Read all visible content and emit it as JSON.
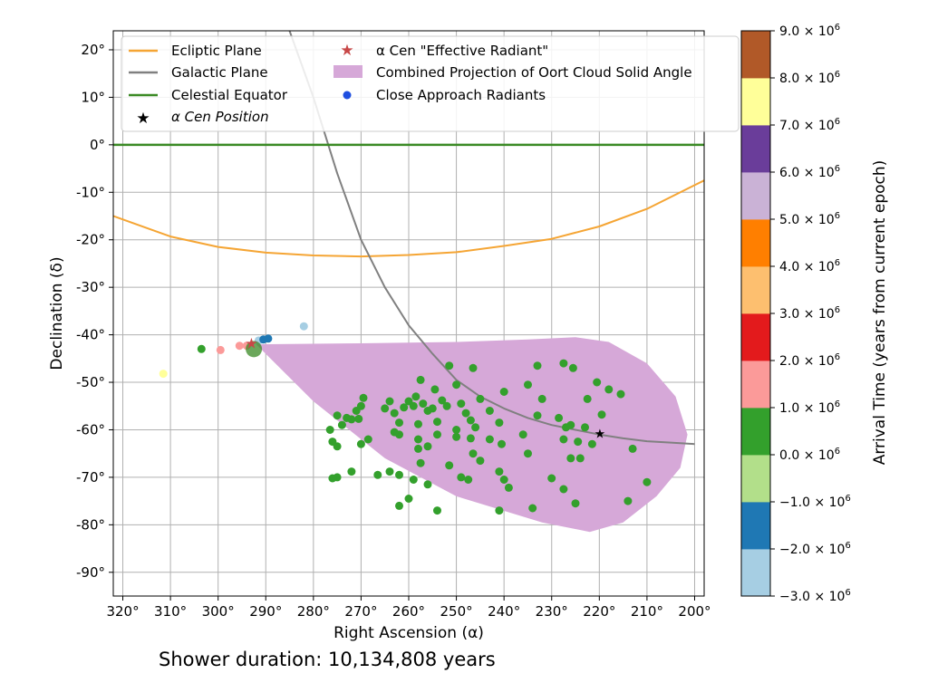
{
  "chart_data": {
    "type": "scatter",
    "xlabel": "Right Ascension (α)",
    "ylabel": "Declination (δ)",
    "caption": "Shower duration: 10,134,808 years",
    "x_axis": {
      "reversed": true,
      "range": [
        322,
        198
      ],
      "ticks": [
        320,
        310,
        300,
        290,
        280,
        270,
        260,
        250,
        240,
        230,
        220,
        210,
        200
      ],
      "tick_labels": [
        "320°",
        "310°",
        "300°",
        "290°",
        "280°",
        "270°",
        "260°",
        "250°",
        "240°",
        "230°",
        "220°",
        "210°",
        "200°"
      ]
    },
    "y_axis": {
      "range": [
        -95,
        24
      ],
      "ticks": [
        20,
        10,
        0,
        -10,
        -20,
        -30,
        -40,
        -50,
        -60,
        -70,
        -80,
        -90
      ],
      "tick_labels": [
        "20°",
        "10°",
        "0°",
        "-10°",
        "-20°",
        "-30°",
        "-40°",
        "-50°",
        "-60°",
        "-70°",
        "-80°",
        "-90°"
      ]
    },
    "grid": true,
    "legend": {
      "placement": "top-left",
      "entries": [
        {
          "label": "Ecliptic Plane",
          "kind": "line",
          "color": "#f5a534"
        },
        {
          "label": "Galactic Plane",
          "kind": "line",
          "color": "#808080"
        },
        {
          "label": "Celestial Equator",
          "kind": "line",
          "color": "#3a8a24"
        },
        {
          "label": "α Cen Position",
          "kind": "star",
          "color": "#000000"
        },
        {
          "label": "α Cen \"Effective Radiant\"",
          "kind": "star",
          "color": "#c84848"
        },
        {
          "label": "Combined Projection of Oort Cloud Solid Angle",
          "kind": "patch",
          "color": "#d6a8d8"
        },
        {
          "label": "Close Approach Radiants",
          "kind": "dot",
          "color": "#1f4fe0"
        }
      ]
    },
    "lines": {
      "celestial_equator": {
        "color": "#3a8a24",
        "dec": 0
      },
      "ecliptic": {
        "color": "#f5a534",
        "points": [
          [
            322,
            -15
          ],
          [
            310,
            -19.3
          ],
          [
            300,
            -21.5
          ],
          [
            290,
            -22.7
          ],
          [
            280,
            -23.3
          ],
          [
            270,
            -23.5
          ],
          [
            260,
            -23.2
          ],
          [
            250,
            -22.6
          ],
          [
            240,
            -21.3
          ],
          [
            230,
            -19.8
          ],
          [
            220,
            -17.2
          ],
          [
            210,
            -13.5
          ],
          [
            200,
            -8.5
          ],
          [
            198,
            -7.5
          ]
        ]
      },
      "galactic": {
        "color": "#808080",
        "points": [
          [
            285,
            24
          ],
          [
            280,
            10
          ],
          [
            275,
            -6
          ],
          [
            270,
            -20
          ],
          [
            265,
            -30
          ],
          [
            260,
            -38
          ],
          [
            255,
            -44
          ],
          [
            250,
            -49.5
          ],
          [
            245,
            -53
          ],
          [
            240,
            -55.5
          ],
          [
            235,
            -57.5
          ],
          [
            230,
            -59
          ],
          [
            225,
            -60
          ],
          [
            220,
            -61
          ],
          [
            215,
            -61.8
          ],
          [
            210,
            -62.4
          ],
          [
            205,
            -62.7
          ],
          [
            200,
            -63
          ]
        ]
      }
    },
    "oort_projection": {
      "color": "#d6a8d8",
      "outline": [
        [
          292,
          -42
        ],
        [
          270,
          -41.8
        ],
        [
          250,
          -41.5
        ],
        [
          235,
          -41
        ],
        [
          225,
          -40.5
        ],
        [
          218,
          -41.5
        ],
        [
          210,
          -46
        ],
        [
          204,
          -53
        ],
        [
          201.5,
          -61
        ],
        [
          203,
          -68
        ],
        [
          208,
          -74
        ],
        [
          215,
          -79.5
        ],
        [
          222,
          -81.5
        ],
        [
          232,
          -79.5
        ],
        [
          250,
          -74
        ],
        [
          265,
          -66
        ],
        [
          280,
          -54
        ],
        [
          292,
          -42
        ]
      ]
    },
    "markers": {
      "alpha_cen_position": {
        "ra": 219.9,
        "dec": -60.8,
        "color": "#000000"
      },
      "alpha_cen_effective_radiant": {
        "ra": 293,
        "dec": -41.7,
        "color": "#c84848"
      },
      "radiant_marker": {
        "ra": 292.5,
        "dec": -43,
        "color": "#3a8a24"
      }
    },
    "colorbar": {
      "label": "Arrival Time (years from current epoch)",
      "bins": [
        {
          "color": "#a6cee3"
        },
        {
          "color": "#1f78b4"
        },
        {
          "color": "#b2df8a"
        },
        {
          "color": "#33a02c"
        },
        {
          "color": "#fb9a99"
        },
        {
          "color": "#e31a1c"
        },
        {
          "color": "#fdbf6f"
        },
        {
          "color": "#ff7f00"
        },
        {
          "color": "#cab2d6"
        },
        {
          "color": "#6a3d9a"
        },
        {
          "color": "#ffff99"
        },
        {
          "color": "#b15928"
        }
      ],
      "tick_mantissas": [
        "−3.0",
        "−2.0",
        "−1.0",
        "0.0",
        "1.0",
        "2.0",
        "3.0",
        "4.0",
        "5.0",
        "6.0",
        "7.0",
        "8.0",
        "9.0"
      ],
      "tick_suffix": "× 10",
      "tick_exponent": "6"
    },
    "scatter_points": [
      {
        "ra": 311.5,
        "dec": -48.2,
        "color": "#ffff99"
      },
      {
        "ra": 303.5,
        "dec": -43,
        "color": "#33a02c"
      },
      {
        "ra": 299.5,
        "dec": -43.2,
        "color": "#fb9a99"
      },
      {
        "ra": 295.5,
        "dec": -42.3,
        "color": "#fb9a99"
      },
      {
        "ra": 294,
        "dec": -42.3,
        "color": "#fb9a99"
      },
      {
        "ra": 291.5,
        "dec": -41.2,
        "color": "#a6cee3"
      },
      {
        "ra": 290.5,
        "dec": -41,
        "color": "#1f78b4"
      },
      {
        "ra": 289.5,
        "dec": -40.8,
        "color": "#1f78b4"
      },
      {
        "ra": 282,
        "dec": -38.2,
        "color": "#a6cee3"
      },
      {
        "ra": 251.5,
        "dec": -46.5,
        "color": "#33a02c"
      },
      {
        "ra": 246.5,
        "dec": -47,
        "color": "#33a02c"
      },
      {
        "ra": 257.5,
        "dec": -49.5,
        "color": "#33a02c"
      },
      {
        "ra": 250,
        "dec": -50.5,
        "color": "#33a02c"
      },
      {
        "ra": 254.5,
        "dec": -51.5,
        "color": "#33a02c"
      },
      {
        "ra": 227.5,
        "dec": -46,
        "color": "#33a02c"
      },
      {
        "ra": 225.5,
        "dec": -47,
        "color": "#33a02c"
      },
      {
        "ra": 233,
        "dec": -46.5,
        "color": "#33a02c"
      },
      {
        "ra": 220.5,
        "dec": -50,
        "color": "#33a02c"
      },
      {
        "ra": 218,
        "dec": -51.5,
        "color": "#33a02c"
      },
      {
        "ra": 215.5,
        "dec": -52.5,
        "color": "#33a02c"
      },
      {
        "ra": 235,
        "dec": -50.5,
        "color": "#33a02c"
      },
      {
        "ra": 240,
        "dec": -52,
        "color": "#33a02c"
      },
      {
        "ra": 232,
        "dec": -53.5,
        "color": "#33a02c"
      },
      {
        "ra": 222.5,
        "dec": -53.5,
        "color": "#33a02c"
      },
      {
        "ra": 269.5,
        "dec": -53.3,
        "color": "#33a02c"
      },
      {
        "ra": 270,
        "dec": -55,
        "color": "#33a02c"
      },
      {
        "ra": 271,
        "dec": -56,
        "color": "#33a02c"
      },
      {
        "ra": 273,
        "dec": -57.5,
        "color": "#33a02c"
      },
      {
        "ra": 275,
        "dec": -57,
        "color": "#33a02c"
      },
      {
        "ra": 274,
        "dec": -59,
        "color": "#33a02c"
      },
      {
        "ra": 276.5,
        "dec": -60,
        "color": "#33a02c"
      },
      {
        "ra": 272,
        "dec": -57.8,
        "color": "#33a02c"
      },
      {
        "ra": 270.5,
        "dec": -57.7,
        "color": "#33a02c"
      },
      {
        "ra": 264,
        "dec": -54,
        "color": "#33a02c"
      },
      {
        "ra": 265,
        "dec": -55.5,
        "color": "#33a02c"
      },
      {
        "ra": 263,
        "dec": -56.5,
        "color": "#33a02c"
      },
      {
        "ra": 261,
        "dec": -55.3,
        "color": "#33a02c"
      },
      {
        "ra": 260,
        "dec": -54,
        "color": "#33a02c"
      },
      {
        "ra": 259,
        "dec": -55,
        "color": "#33a02c"
      },
      {
        "ra": 258.5,
        "dec": -53,
        "color": "#33a02c"
      },
      {
        "ra": 257,
        "dec": -54.5,
        "color": "#33a02c"
      },
      {
        "ra": 256,
        "dec": -56,
        "color": "#33a02c"
      },
      {
        "ra": 255,
        "dec": -55.5,
        "color": "#33a02c"
      },
      {
        "ra": 253,
        "dec": -53.8,
        "color": "#33a02c"
      },
      {
        "ra": 252,
        "dec": -55,
        "color": "#33a02c"
      },
      {
        "ra": 249,
        "dec": -54.5,
        "color": "#33a02c"
      },
      {
        "ra": 248,
        "dec": -56.5,
        "color": "#33a02c"
      },
      {
        "ra": 245,
        "dec": -53.5,
        "color": "#33a02c"
      },
      {
        "ra": 247,
        "dec": -58,
        "color": "#33a02c"
      },
      {
        "ra": 243,
        "dec": -56,
        "color": "#33a02c"
      },
      {
        "ra": 262,
        "dec": -58.5,
        "color": "#33a02c"
      },
      {
        "ra": 258,
        "dec": -58.8,
        "color": "#33a02c"
      },
      {
        "ra": 254,
        "dec": -58.3,
        "color": "#33a02c"
      },
      {
        "ra": 250,
        "dec": -60,
        "color": "#33a02c"
      },
      {
        "ra": 246,
        "dec": -59.5,
        "color": "#33a02c"
      },
      {
        "ra": 241,
        "dec": -58.5,
        "color": "#33a02c"
      },
      {
        "ra": 262,
        "dec": -61,
        "color": "#33a02c"
      },
      {
        "ra": 258,
        "dec": -62,
        "color": "#33a02c"
      },
      {
        "ra": 254,
        "dec": -61,
        "color": "#33a02c"
      },
      {
        "ra": 250,
        "dec": -61.5,
        "color": "#33a02c"
      },
      {
        "ra": 247,
        "dec": -61.8,
        "color": "#33a02c"
      },
      {
        "ra": 243,
        "dec": -62,
        "color": "#33a02c"
      },
      {
        "ra": 263,
        "dec": -60.5,
        "color": "#33a02c"
      },
      {
        "ra": 258,
        "dec": -64,
        "color": "#33a02c"
      },
      {
        "ra": 256,
        "dec": -63.5,
        "color": "#33a02c"
      },
      {
        "ra": 246.5,
        "dec": -65,
        "color": "#33a02c"
      },
      {
        "ra": 245,
        "dec": -66.5,
        "color": "#33a02c"
      },
      {
        "ra": 240.5,
        "dec": -63,
        "color": "#33a02c"
      },
      {
        "ra": 236,
        "dec": -61,
        "color": "#33a02c"
      },
      {
        "ra": 233,
        "dec": -57,
        "color": "#33a02c"
      },
      {
        "ra": 226,
        "dec": -59,
        "color": "#33a02c"
      },
      {
        "ra": 228.5,
        "dec": -57.5,
        "color": "#33a02c"
      },
      {
        "ra": 227,
        "dec": -59.5,
        "color": "#33a02c"
      },
      {
        "ra": 223,
        "dec": -59.5,
        "color": "#33a02c"
      },
      {
        "ra": 219.5,
        "dec": -56.8,
        "color": "#33a02c"
      },
      {
        "ra": 221.5,
        "dec": -63,
        "color": "#33a02c"
      },
      {
        "ra": 224.5,
        "dec": -62.5,
        "color": "#33a02c"
      },
      {
        "ra": 227.5,
        "dec": -62,
        "color": "#33a02c"
      },
      {
        "ra": 226,
        "dec": -66,
        "color": "#33a02c"
      },
      {
        "ra": 224,
        "dec": -66,
        "color": "#33a02c"
      },
      {
        "ra": 213,
        "dec": -64,
        "color": "#33a02c"
      },
      {
        "ra": 235,
        "dec": -65,
        "color": "#33a02c"
      },
      {
        "ra": 230,
        "dec": -70.2,
        "color": "#33a02c"
      },
      {
        "ra": 227.5,
        "dec": -72.5,
        "color": "#33a02c"
      },
      {
        "ra": 225,
        "dec": -75.5,
        "color": "#33a02c"
      },
      {
        "ra": 214,
        "dec": -75,
        "color": "#33a02c"
      },
      {
        "ra": 210,
        "dec": -71,
        "color": "#33a02c"
      },
      {
        "ra": 241,
        "dec": -68.8,
        "color": "#33a02c"
      },
      {
        "ra": 240,
        "dec": -70.5,
        "color": "#33a02c"
      },
      {
        "ra": 239,
        "dec": -72.2,
        "color": "#33a02c"
      },
      {
        "ra": 234,
        "dec": -76.5,
        "color": "#33a02c"
      },
      {
        "ra": 241,
        "dec": -77,
        "color": "#33a02c"
      },
      {
        "ra": 249,
        "dec": -70,
        "color": "#33a02c"
      },
      {
        "ra": 247.5,
        "dec": -70.5,
        "color": "#33a02c"
      },
      {
        "ra": 251.5,
        "dec": -67.5,
        "color": "#33a02c"
      },
      {
        "ra": 257.5,
        "dec": -67,
        "color": "#33a02c"
      },
      {
        "ra": 259,
        "dec": -70.5,
        "color": "#33a02c"
      },
      {
        "ra": 256,
        "dec": -71.5,
        "color": "#33a02c"
      },
      {
        "ra": 254,
        "dec": -77,
        "color": "#33a02c"
      },
      {
        "ra": 260,
        "dec": -74.5,
        "color": "#33a02c"
      },
      {
        "ra": 262,
        "dec": -76,
        "color": "#33a02c"
      },
      {
        "ra": 262,
        "dec": -69.5,
        "color": "#33a02c"
      },
      {
        "ra": 264,
        "dec": -68.8,
        "color": "#33a02c"
      },
      {
        "ra": 266.5,
        "dec": -69.5,
        "color": "#33a02c"
      },
      {
        "ra": 272,
        "dec": -68.8,
        "color": "#33a02c"
      },
      {
        "ra": 275,
        "dec": -70,
        "color": "#33a02c"
      },
      {
        "ra": 276,
        "dec": -70.2,
        "color": "#33a02c"
      },
      {
        "ra": 276,
        "dec": -62.5,
        "color": "#33a02c"
      },
      {
        "ra": 275,
        "dec": -63.5,
        "color": "#33a02c"
      },
      {
        "ra": 270,
        "dec": -63,
        "color": "#33a02c"
      },
      {
        "ra": 268.5,
        "dec": -62,
        "color": "#33a02c"
      }
    ]
  }
}
